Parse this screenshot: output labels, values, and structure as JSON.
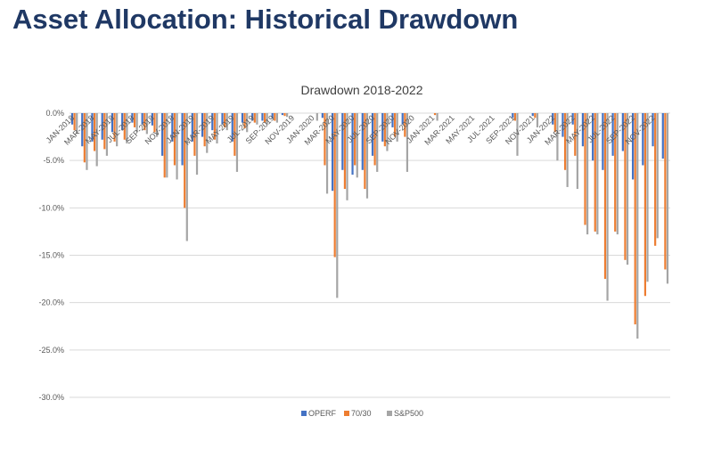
{
  "slide": {
    "title": "Asset Allocation: Historical Drawdown"
  },
  "colors": {
    "OPERF": "#4472c4",
    "70/30": "#ed7d31",
    "S&P500": "#a5a5a5",
    "title": "#1f3864",
    "grid": "#d9d9d9"
  },
  "chart_data": {
    "type": "bar",
    "title": "Drawdown 2018-2022",
    "xlabel": "",
    "ylabel": "",
    "ylim": [
      -0.3,
      0.0
    ],
    "yticks": [
      "0.0%",
      "-5.0%",
      "-10.0%",
      "-15.0%",
      "-20.0%",
      "-25.0%",
      "-30.0%"
    ],
    "grid": true,
    "legend": "bottom",
    "categories": [
      "JAN-2018",
      "FEB-2018",
      "MAR-2018",
      "APR-2018",
      "MAY-2018",
      "JUN-2018",
      "JUL-2018",
      "AUG-2018",
      "SEP-2018",
      "OCT-2018",
      "NOV-2018",
      "DEC-2018",
      "JAN-2019",
      "FEB-2019",
      "MAR-2019",
      "APR-2019",
      "MAY-2019",
      "JUN-2019",
      "JUL-2019",
      "AUG-2019",
      "SEP-2019",
      "OCT-2019",
      "NOV-2019",
      "DEC-2019",
      "JAN-2020",
      "FEB-2020",
      "MAR-2020",
      "APR-2020",
      "MAY-2020",
      "JUN-2020",
      "JUL-2020",
      "AUG-2020",
      "SEP-2020",
      "OCT-2020",
      "NOV-2020",
      "DEC-2020",
      "JAN-2021",
      "FEB-2021",
      "MAR-2021",
      "APR-2021",
      "MAY-2021",
      "JUN-2021",
      "JUL-2021",
      "AUG-2021",
      "SEP-2021",
      "OCT-2021",
      "NOV-2021",
      "DEC-2021",
      "JAN-2022",
      "FEB-2022",
      "MAR-2022",
      "APR-2022",
      "MAY-2022",
      "JUN-2022",
      "JUL-2022",
      "AUG-2022",
      "SEP-2022",
      "OCT-2022",
      "NOV-2022",
      "DEC-2022"
    ],
    "xtick_labels": [
      "JAN-2018",
      "MAR-2018",
      "MAY-2018",
      "JUL-2018",
      "SEP-2018",
      "NOV-2018",
      "JAN-2019",
      "MAR-2019",
      "MAY-2019",
      "JUL-2019",
      "SEP-2019",
      "NOV-2019",
      "JAN-2020",
      "MAR-2020",
      "MAY-2020",
      "JUL-2020",
      "SEP-2020",
      "NOV-2020",
      "JAN-2021",
      "MAR-2021",
      "MAY-2021",
      "JUL-2021",
      "SEP-2021",
      "NOV-2021",
      "JAN-2022",
      "MAR-2022",
      "MAY-2022",
      "JUL-2022",
      "SEP-2022",
      "NOV-2022"
    ],
    "series": [
      {
        "name": "OPERF",
        "values": [
          -0.012,
          -0.035,
          -0.03,
          -0.028,
          -0.02,
          -0.018,
          -0.01,
          -0.012,
          -0.013,
          -0.045,
          -0.03,
          -0.055,
          -0.03,
          -0.025,
          -0.018,
          -0.012,
          -0.03,
          -0.01,
          -0.008,
          -0.008,
          -0.006,
          -0.002,
          0,
          0,
          0,
          -0.005,
          -0.082,
          -0.06,
          -0.065,
          -0.06,
          -0.045,
          -0.03,
          -0.015,
          -0.012,
          0,
          0,
          0,
          0,
          0,
          0,
          0,
          0,
          0,
          0,
          -0.005,
          0,
          -0.003,
          0,
          -0.012,
          -0.025,
          -0.012,
          -0.035,
          -0.05,
          -0.06,
          -0.045,
          -0.04,
          -0.07,
          -0.055,
          -0.035,
          -0.048
        ]
      },
      {
        "name": "70/30",
        "values": [
          -0.018,
          -0.052,
          -0.04,
          -0.038,
          -0.03,
          -0.028,
          -0.015,
          -0.018,
          -0.02,
          -0.068,
          -0.055,
          -0.1,
          -0.045,
          -0.035,
          -0.028,
          -0.015,
          -0.045,
          -0.016,
          -0.01,
          -0.01,
          -0.008,
          -0.003,
          0,
          0,
          0,
          -0.055,
          -0.152,
          -0.08,
          -0.055,
          -0.08,
          -0.055,
          -0.035,
          -0.025,
          -0.025,
          0,
          0,
          -0.002,
          0,
          0,
          0,
          0,
          0,
          0,
          0,
          -0.008,
          0,
          -0.005,
          0,
          -0.02,
          -0.06,
          -0.045,
          -0.118,
          -0.125,
          -0.175,
          -0.125,
          -0.155,
          -0.223,
          -0.193,
          -0.14,
          -0.165
        ]
      },
      {
        "name": "S&P500",
        "values": [
          -0.022,
          -0.06,
          -0.056,
          -0.045,
          -0.035,
          -0.032,
          -0.02,
          -0.022,
          -0.025,
          -0.068,
          -0.07,
          -0.135,
          -0.065,
          -0.042,
          -0.032,
          -0.018,
          -0.062,
          -0.02,
          -0.012,
          -0.012,
          -0.01,
          -0.004,
          0,
          0,
          -0.008,
          -0.085,
          -0.195,
          -0.092,
          -0.068,
          -0.09,
          -0.062,
          -0.04,
          -0.03,
          -0.062,
          0,
          0,
          -0.008,
          0,
          0,
          0,
          0,
          0,
          0,
          0,
          -0.045,
          0,
          -0.015,
          0,
          -0.05,
          -0.078,
          -0.08,
          -0.128,
          -0.128,
          -0.198,
          -0.128,
          -0.16,
          -0.238,
          -0.178,
          -0.132,
          -0.18
        ]
      }
    ]
  }
}
